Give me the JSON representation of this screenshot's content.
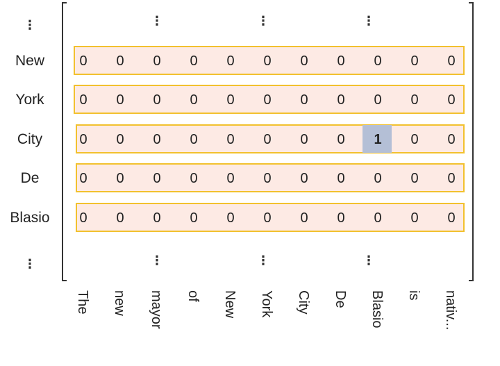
{
  "matrix": {
    "row_labels": [
      "New",
      "York",
      "City",
      "De",
      "Blasio"
    ],
    "col_labels": [
      "The",
      "new",
      "mayor",
      "of",
      "New",
      "York",
      "City",
      "De",
      "Blasio",
      "is",
      "nativ..."
    ],
    "values": [
      [
        "0",
        "0",
        "0",
        "0",
        "0",
        "0",
        "0",
        "0",
        "0",
        "0",
        "0"
      ],
      [
        "0",
        "0",
        "0",
        "0",
        "0",
        "0",
        "0",
        "0",
        "0",
        "0",
        "0"
      ],
      [
        "0",
        "0",
        "0",
        "0",
        "0",
        "0",
        "0",
        "0",
        "1",
        "0",
        "0"
      ],
      [
        "0",
        "0",
        "0",
        "0",
        "0",
        "0",
        "0",
        "0",
        "0",
        "0",
        "0"
      ],
      [
        "0",
        "0",
        "0",
        "0",
        "0",
        "0",
        "0",
        "0",
        "0",
        "0",
        "0"
      ]
    ],
    "blue_value_cells": [
      [
        0,
        5
      ],
      [
        0,
        6
      ]
    ],
    "highlight_cell": [
      2,
      8
    ],
    "ellipsis_symbol": "⋮"
  },
  "colors": {
    "row_fill": "#fdeae4",
    "row_border": "#f2c12e",
    "highlight_fill": "#b4bfd6",
    "highlight_text": "#4472c4",
    "blue_text": "#2f5597",
    "bracket": "#333333"
  }
}
